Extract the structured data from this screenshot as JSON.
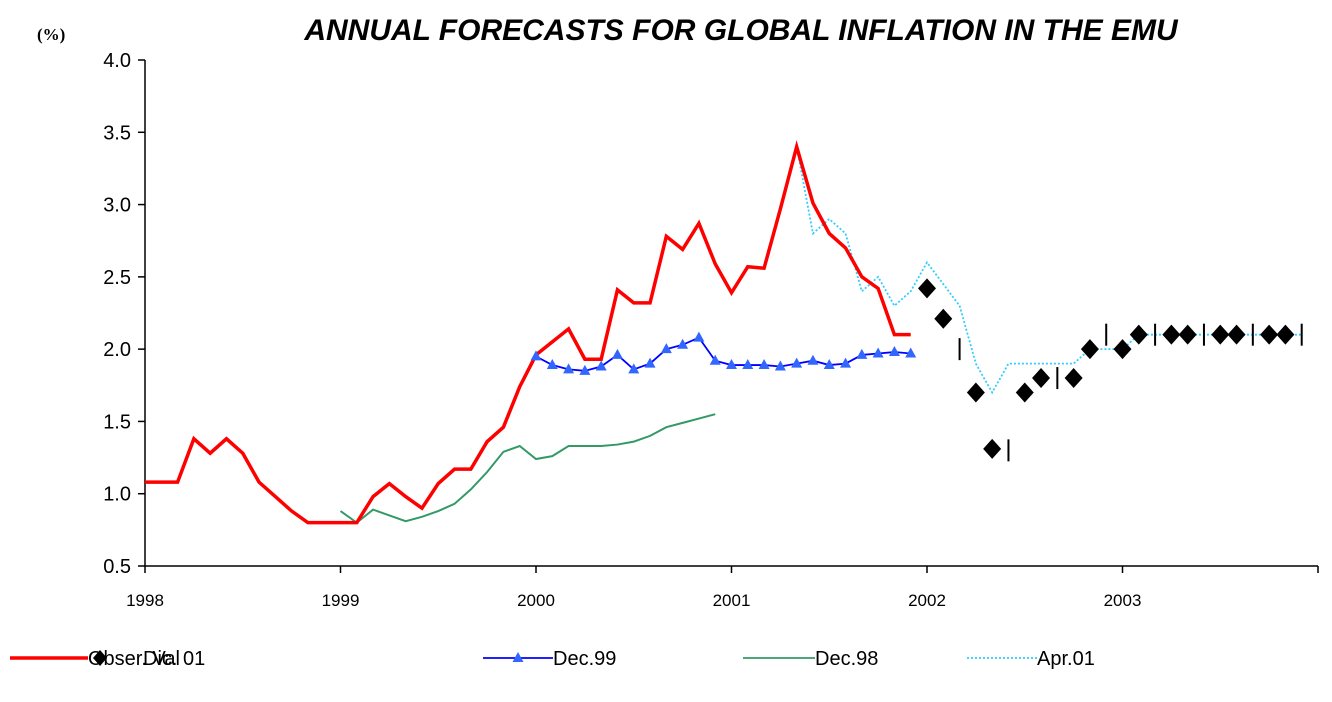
{
  "chart_data": {
    "type": "line",
    "title": "ANNUAL FORECASTS FOR GLOBAL INFLATION IN THE  EMU",
    "unit_label": "(%)",
    "xlabel": "",
    "ylabel": "",
    "ylim": [
      0.5,
      4.0
    ],
    "y_ticks": [
      "0.5",
      "1.0",
      "1.5",
      "2.0",
      "2.5",
      "3.0",
      "3.5",
      "4.0"
    ],
    "x_ticks": [
      "1998",
      "1999",
      "2000",
      "2001",
      "2002",
      "2003"
    ],
    "x_range_months": [
      0,
      72
    ],
    "grid": false,
    "legend_position": "bottom",
    "series": [
      {
        "name": "Obser. Val",
        "style": "line",
        "color": "#ff0000",
        "x": [
          0,
          1,
          2,
          3,
          4,
          5,
          6,
          7,
          8,
          9,
          10,
          11,
          12,
          13,
          14,
          15,
          16,
          17,
          18,
          19,
          20,
          21,
          22,
          23,
          24,
          25,
          26,
          27,
          28,
          29,
          30,
          31,
          32,
          33,
          34,
          35,
          36,
          37,
          38,
          39,
          40,
          41,
          42,
          43,
          44,
          45,
          46,
          47
        ],
        "values": [
          1.08,
          1.08,
          1.08,
          1.38,
          1.28,
          1.38,
          1.28,
          1.08,
          0.98,
          0.88,
          0.8,
          0.8,
          0.8,
          0.8,
          0.98,
          1.07,
          0.98,
          0.9,
          1.07,
          1.17,
          1.17,
          1.36,
          1.46,
          1.74,
          1.96,
          2.05,
          2.14,
          1.93,
          1.93,
          2.41,
          2.32,
          2.32,
          2.78,
          2.69,
          2.87,
          2.59,
          2.39,
          2.57,
          2.56,
          2.97,
          3.4,
          3.01,
          2.8,
          2.7,
          2.5,
          2.42,
          2.1,
          2.1
        ]
      },
      {
        "name": "Dic. 01",
        "style": "diamond",
        "color": "#000000",
        "x": [
          48,
          49,
          50,
          51,
          52,
          53,
          54,
          55,
          56,
          57,
          58,
          59,
          60,
          61,
          62,
          63,
          64,
          65,
          66,
          67,
          68,
          69,
          70,
          71
        ],
        "values": [
          2.42,
          2.21,
          null,
          1.7,
          1.31,
          null,
          1.7,
          1.8,
          null,
          1.8,
          2.0,
          null,
          2.0,
          2.1,
          null,
          2.1,
          2.1,
          null,
          2.1,
          2.1,
          null,
          2.1,
          2.1,
          null
        ]
      },
      {
        "name": "Dec.99",
        "style": "line-triangle",
        "color": "#0000ff",
        "marker_color": "#3366ff",
        "x": [
          24,
          25,
          26,
          27,
          28,
          29,
          30,
          31,
          32,
          33,
          34,
          35,
          36,
          37,
          38,
          39,
          40,
          41,
          42,
          43,
          44,
          45,
          46,
          47
        ],
        "values": [
          1.95,
          1.89,
          1.86,
          1.85,
          1.88,
          1.96,
          1.86,
          1.9,
          2.0,
          2.03,
          2.08,
          1.92,
          1.89,
          1.89,
          1.89,
          1.88,
          1.9,
          1.92,
          1.89,
          1.9,
          1.96,
          1.97,
          1.98,
          1.97
        ]
      },
      {
        "name": "Dec.98",
        "style": "line",
        "color": "#339966",
        "x": [
          12,
          13,
          14,
          15,
          16,
          17,
          18,
          19,
          20,
          21,
          22,
          23,
          24,
          25,
          26,
          27,
          28,
          29,
          30,
          31,
          32,
          33,
          34,
          35
        ],
        "values": [
          0.88,
          0.8,
          0.89,
          0.85,
          0.81,
          0.84,
          0.88,
          0.93,
          1.03,
          1.15,
          1.29,
          1.33,
          1.24,
          1.26,
          1.33,
          1.33,
          1.33,
          1.34,
          1.36,
          1.4,
          1.46,
          1.49,
          1.52,
          1.55
        ]
      },
      {
        "name": "Apr.01",
        "style": "dotted-line",
        "color": "#33ccff",
        "x": [
          40,
          41,
          42,
          43,
          44,
          45,
          46,
          47,
          48,
          49,
          50,
          51,
          52,
          53,
          54,
          55,
          56,
          57,
          58,
          59,
          60,
          61,
          62,
          63,
          64,
          65,
          66,
          67,
          68,
          69,
          70,
          71
        ],
        "values": [
          3.4,
          2.8,
          2.9,
          2.8,
          2.4,
          2.5,
          2.3,
          2.4,
          2.6,
          2.45,
          2.3,
          1.9,
          1.7,
          1.9,
          1.9,
          1.9,
          1.9,
          1.9,
          2.0,
          2.0,
          2.0,
          2.1,
          2.1,
          2.1,
          2.1,
          2.1,
          2.1,
          2.1,
          2.1,
          2.1,
          2.1,
          2.1
        ]
      }
    ],
    "annotations": {
      "name": "vertical bars",
      "color": "#000000",
      "x": [
        50,
        53,
        56,
        59,
        62,
        65,
        68,
        71
      ],
      "values": [
        2.0,
        1.3,
        1.8,
        2.1,
        2.1,
        2.1,
        2.1,
        2.1
      ]
    }
  }
}
